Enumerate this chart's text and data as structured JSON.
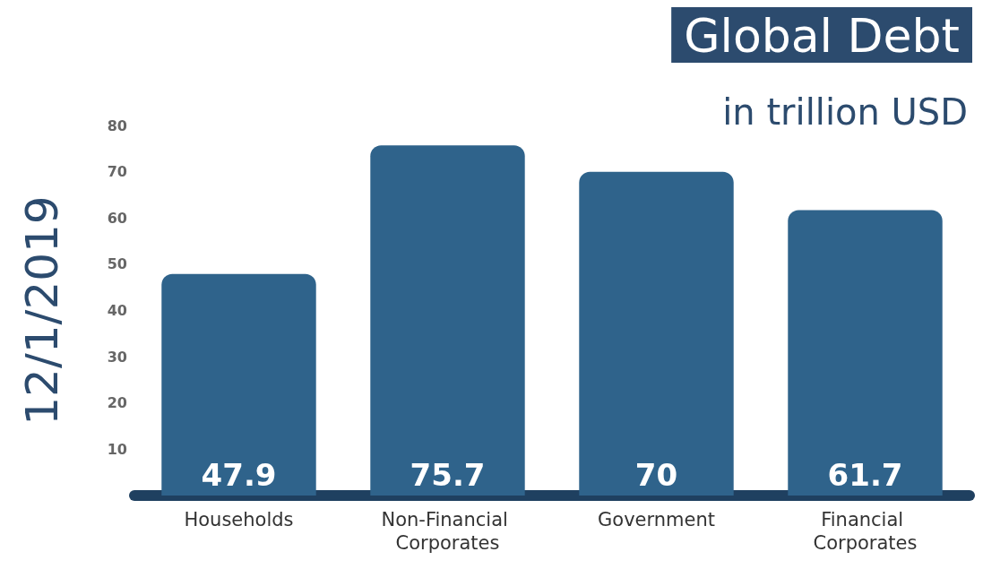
{
  "chart_data": {
    "type": "bar",
    "title": "Global Debt",
    "subtitle": "in trillion USD",
    "ylabel": "12/1/2019",
    "categories": [
      "Households",
      "Non-Financial Corporates",
      "Government",
      "Financial Corporates"
    ],
    "values": [
      47.9,
      75.7,
      70,
      61.7
    ],
    "color": "#2f638b",
    "data_labels": true,
    "ylim": [
      0,
      80
    ],
    "yticks": [
      10,
      20,
      30,
      40,
      50,
      60,
      70,
      80
    ]
  }
}
